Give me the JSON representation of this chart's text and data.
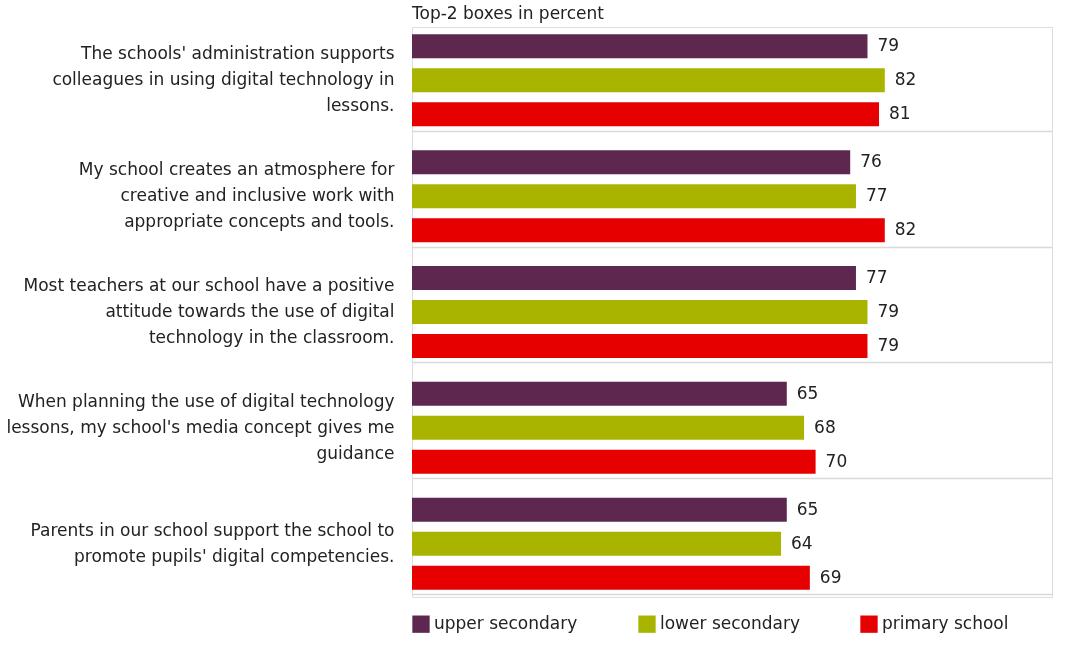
{
  "chart_data": {
    "type": "bar",
    "orientation": "horizontal",
    "title": "Top-2 boxes in percent",
    "categories": [
      "The schools' administration supports colleagues in using digital technology in lessons.",
      "My school creates an atmosphere for creative and inclusive work with appropriate concepts and tools.",
      "Most teachers at our school have a positive attitude towards the use of digital technology in the classroom.",
      "When planning the use of digital technology lessons, my school's media concept gives me guidance",
      "Parents in our school support the school to promote pupils' digital competencies."
    ],
    "series": [
      {
        "name": "upper secondary",
        "color": "#5e2750",
        "values": [
          79,
          76,
          77,
          65,
          65
        ]
      },
      {
        "name": "lower secondary",
        "color": "#a8b400",
        "values": [
          82,
          77,
          79,
          68,
          64
        ]
      },
      {
        "name": "primary school",
        "color": "#e60000",
        "values": [
          81,
          82,
          79,
          70,
          69
        ]
      }
    ],
    "xlim": [
      0,
      111
    ],
    "data_labels": true,
    "grid": "y",
    "legend": "bottom",
    "tick_labels": "y"
  }
}
